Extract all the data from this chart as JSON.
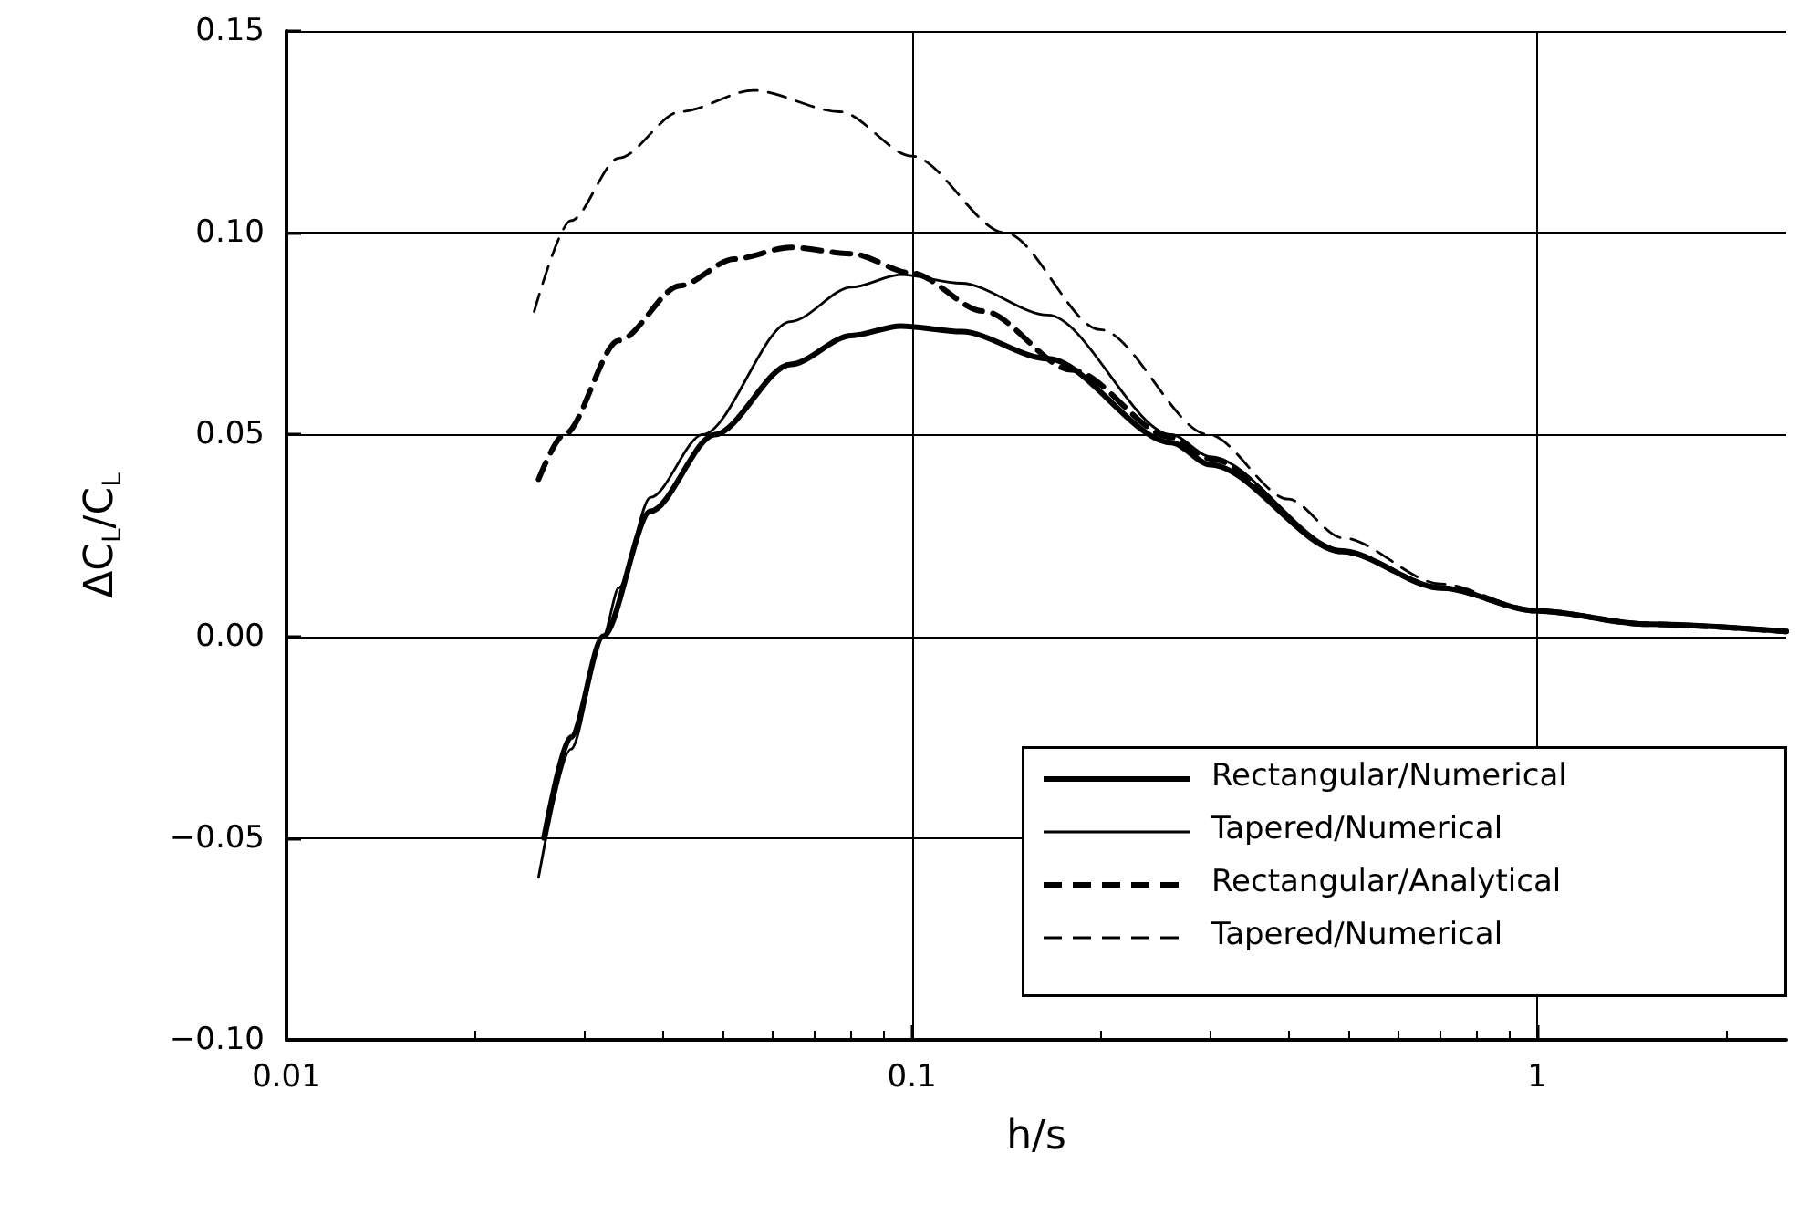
{
  "chart_data": {
    "type": "line",
    "xlabel": "h/s",
    "ylabel": "ΔC$_{L}$/C$_{L}$",
    "log": "x",
    "grid": true,
    "legend": "bottom right",
    "xlim": [
      0.01,
      2.5
    ],
    "xticks": [
      0.01,
      0.1,
      1
    ],
    "ylim": [
      -0.1,
      0.15
    ],
    "yticks": [
      {
        "value": -0.1,
        "label": "−0.10"
      },
      {
        "value": -0.05,
        "label": "−0.05"
      },
      {
        "value": 0,
        "label": "0.00"
      },
      {
        "value": 0.05,
        "label": "0.05"
      },
      {
        "value": 0.1,
        "label": "0.10"
      },
      {
        "value": 0.15,
        "label": "0.15"
      }
    ],
    "series": [
      {
        "name": "Rectangular/Numerical",
        "color": "#000000",
        "line_style": "solid",
        "x": [
          0.0258,
          0.0285,
          0.0321,
          0.0382,
          0.0484,
          0.064,
          0.08,
          0.096,
          0.12,
          0.165,
          0.26,
          0.3,
          0.488,
          0.7,
          1.0,
          1.5,
          2.5
        ],
        "values": [
          -0.05,
          -0.025,
          0.0,
          0.031,
          0.05,
          0.0674,
          0.0745,
          0.0769,
          0.0755,
          0.0688,
          0.048,
          0.0425,
          0.021,
          0.012,
          0.0063,
          0.003,
          0.0012
        ]
      },
      {
        "name": "Tapered/Numerical",
        "color": "#000000",
        "line_style": "solid",
        "x": [
          0.0253,
          0.0285,
          0.0321,
          0.034,
          0.0382,
          0.0463,
          0.064,
          0.08,
          0.096,
          0.12,
          0.165,
          0.26,
          0.3,
          0.488,
          0.7,
          1.0,
          1.5,
          2.5
        ],
        "values": [
          -0.0597,
          -0.028,
          0.0,
          0.012,
          0.0344,
          0.05,
          0.078,
          0.0865,
          0.0896,
          0.0875,
          0.0796,
          0.05,
          0.0445,
          0.0215,
          0.012,
          0.0063,
          0.003,
          0.0012
        ]
      },
      {
        "name": "Rectangular/Analytical",
        "color": "#000000",
        "line_style": "dashed",
        "x": [
          0.0253,
          0.0278,
          0.034,
          0.0426,
          0.052,
          0.064,
          0.08,
          0.1,
          0.13,
          0.18,
          0.26,
          0.3,
          0.488,
          0.7,
          1.0,
          1.5,
          2.5
        ],
        "values": [
          0.0389,
          0.05,
          0.0733,
          0.0869,
          0.0935,
          0.0964,
          0.0948,
          0.09,
          0.0806,
          0.066,
          0.0493,
          0.044,
          0.021,
          0.012,
          0.0063,
          0.003,
          0.0012
        ]
      },
      {
        "name": "Tapered/Numerical",
        "color": "#000000",
        "line_style": "dashed",
        "x": [
          0.0249,
          0.0285,
          0.034,
          0.0426,
          0.0558,
          0.0767,
          0.1,
          0.141,
          0.2,
          0.298,
          0.4,
          0.488,
          0.7,
          1.0,
          1.5,
          2.5
        ],
        "values": [
          0.0805,
          0.103,
          0.1185,
          0.13,
          0.1353,
          0.13,
          0.119,
          0.1,
          0.076,
          0.05,
          0.034,
          0.0244,
          0.013,
          0.0063,
          0.003,
          0.0014
        ]
      }
    ]
  }
}
